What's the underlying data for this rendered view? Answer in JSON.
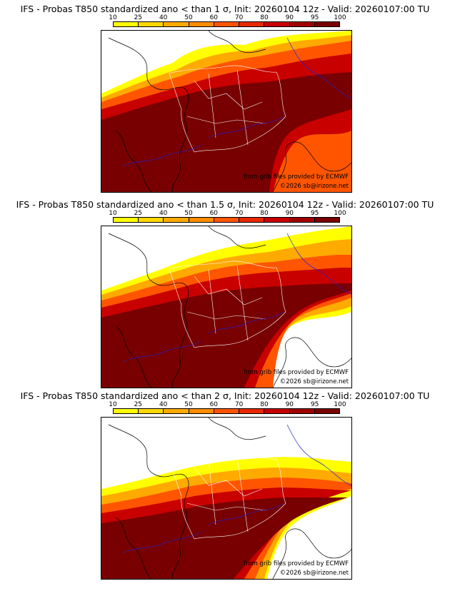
{
  "panels": [
    {
      "title": "IFS - Probas T850  standardized ano < than 1 σ, Init: 20260104 12z - Valid: 20260107:00 TU",
      "source_credit": "from grib files provided by ECMWF",
      "copyright": "©2026 sb@irizone.net",
      "threshold_sigma": 1
    },
    {
      "title": "IFS - Probas T850  standardized ano < than 1.5 σ, Init: 20260104 12z - Valid: 20260107:00 TU",
      "source_credit": "from grib files provided by ECMWF",
      "copyright": "©2026 sb@irizone.net",
      "threshold_sigma": 1.5
    },
    {
      "title": "IFS - Probas T850  standardized ano < than 2 σ, Init: 20260104 12z - Valid: 20260107:00 TU",
      "source_credit": "from grib files provided by ECMWF",
      "copyright": "©2026 sb@irizone.net",
      "threshold_sigma": 2
    }
  ],
  "legend": {
    "ticks": [
      "10",
      "25",
      "40",
      "50",
      "60",
      "70",
      "80",
      "90",
      "95",
      "100"
    ],
    "colors": [
      "#ffff00",
      "#ffd700",
      "#ffaa00",
      "#ff8c00",
      "#ff5500",
      "#e82800",
      "#c80000",
      "#a00000",
      "#780000"
    ]
  },
  "colors": {
    "france_border": "#ffffff",
    "river_lines": "#2222cc",
    "coast_lines": "#000000",
    "map_background": "#ffffff"
  }
}
